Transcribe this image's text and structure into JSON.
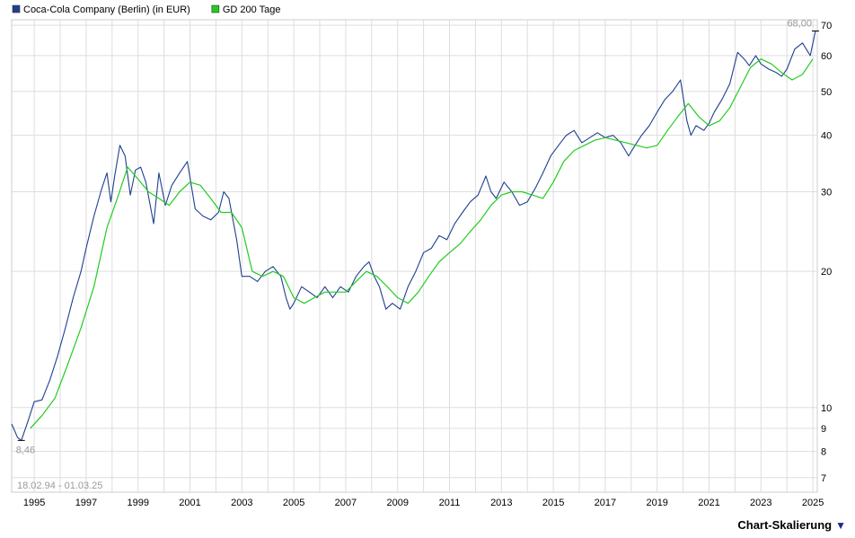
{
  "colors": {
    "price_line": "#1f3f8f",
    "ma_line": "#22cc22",
    "grid": "#dddddd",
    "frame": "#cccccc",
    "annotation": "#9a9a9a",
    "accent": "#1a2a8a"
  },
  "chart_data": {
    "type": "line",
    "y_scale": "log",
    "ylim": [
      6.5,
      72
    ],
    "xlim": [
      1994.13,
      2025.17
    ],
    "y_ticks": [
      7,
      8,
      9,
      10,
      20,
      30,
      40,
      50,
      60,
      70
    ],
    "y_tick_labels": [
      "7",
      "8",
      "9",
      "10",
      "20",
      "30",
      "40",
      "50",
      "60",
      "70"
    ],
    "x_ticks": [
      1995,
      1997,
      1999,
      2001,
      2003,
      2005,
      2007,
      2009,
      2011,
      2013,
      2015,
      2017,
      2019,
      2021,
      2023,
      2025
    ],
    "x_tick_labels": [
      "1995",
      "1997",
      "1999",
      "2001",
      "2003",
      "2005",
      "2007",
      "2009",
      "2011",
      "2013",
      "2015",
      "2017",
      "2019",
      "2021",
      "2023",
      "2025"
    ],
    "grid": true,
    "legend": "top-left",
    "series": [
      {
        "name": "Coca-Cola Company (Berlin) (in EUR)",
        "color": "#1f3f8f",
        "x": [
          1994.13,
          1994.35,
          1994.5,
          1994.75,
          1995.0,
          1995.3,
          1995.6,
          1995.9,
          1996.2,
          1996.5,
          1996.8,
          1997.0,
          1997.3,
          1997.6,
          1997.8,
          1997.95,
          1998.1,
          1998.3,
          1998.5,
          1998.7,
          1998.9,
          1999.1,
          1999.3,
          1999.6,
          1999.8,
          2000.05,
          2000.3,
          2000.6,
          2000.9,
          2001.2,
          2001.5,
          2001.8,
          2002.1,
          2002.3,
          2002.5,
          2002.8,
          2003.0,
          2003.3,
          2003.6,
          2003.9,
          2004.2,
          2004.5,
          2004.7,
          2004.85,
          2005.0,
          2005.3,
          2005.6,
          2005.9,
          2006.2,
          2006.5,
          2006.8,
          2007.1,
          2007.4,
          2007.7,
          2007.9,
          2008.1,
          2008.3,
          2008.55,
          2008.8,
          2009.1,
          2009.4,
          2009.7,
          2010.0,
          2010.3,
          2010.6,
          2010.9,
          2011.2,
          2011.5,
          2011.8,
          2012.1,
          2012.4,
          2012.6,
          2012.8,
          2013.1,
          2013.4,
          2013.7,
          2014.0,
          2014.3,
          2014.6,
          2014.9,
          2015.2,
          2015.5,
          2015.8,
          2016.1,
          2016.4,
          2016.7,
          2017.0,
          2017.3,
          2017.6,
          2017.9,
          2018.15,
          2018.4,
          2018.7,
          2019.0,
          2019.3,
          2019.6,
          2019.9,
          2020.15,
          2020.3,
          2020.5,
          2020.8,
          2021.0,
          2021.2,
          2021.5,
          2021.8,
          2022.1,
          2022.35,
          2022.55,
          2022.8,
          2023.0,
          2023.3,
          2023.6,
          2023.8,
          2024.0,
          2024.3,
          2024.6,
          2024.9,
          2025.1
        ],
        "values": [
          9.2,
          8.6,
          8.46,
          9.3,
          10.3,
          10.4,
          11.5,
          13.0,
          15.0,
          17.5,
          20.0,
          22.5,
          26.5,
          30.5,
          33.0,
          28.5,
          32.5,
          38.0,
          36.0,
          29.5,
          33.5,
          34.0,
          31.5,
          25.5,
          33.0,
          28.0,
          31.0,
          33.0,
          35.0,
          27.5,
          26.5,
          26.0,
          27.0,
          30.0,
          29.0,
          23.5,
          19.5,
          19.5,
          19.0,
          20.0,
          20.5,
          19.5,
          17.5,
          16.5,
          17.0,
          18.5,
          18.0,
          17.5,
          18.5,
          17.5,
          18.5,
          18.0,
          19.5,
          20.5,
          21.0,
          19.5,
          18.5,
          16.5,
          17.0,
          16.5,
          18.5,
          20.0,
          22.0,
          22.5,
          24.0,
          23.5,
          25.5,
          27.0,
          28.5,
          29.5,
          32.5,
          30.0,
          29.0,
          31.5,
          30.0,
          28.0,
          28.5,
          30.5,
          33.0,
          36.0,
          38.0,
          40.0,
          41.0,
          38.5,
          39.5,
          40.5,
          39.5,
          40.0,
          38.5,
          36.0,
          38.0,
          40.0,
          42.0,
          45.0,
          48.0,
          50.0,
          53.0,
          43.0,
          40.0,
          42.0,
          41.0,
          42.5,
          45.0,
          48.0,
          52.0,
          61.0,
          59.0,
          57.0,
          60.0,
          57.5,
          56.0,
          55.0,
          54.0,
          56.0,
          62.0,
          64.0,
          60.0,
          68.0
        ]
      },
      {
        "name": "GD 200 Tage",
        "color": "#22cc22",
        "x": [
          1994.85,
          1995.3,
          1995.8,
          1996.3,
          1996.8,
          1997.3,
          1997.8,
          1998.2,
          1998.6,
          1999.0,
          1999.4,
          1999.8,
          2000.2,
          2000.6,
          2001.0,
          2001.4,
          2001.8,
          2002.2,
          2002.6,
          2003.0,
          2003.4,
          2003.8,
          2004.2,
          2004.6,
          2005.0,
          2005.4,
          2005.8,
          2006.2,
          2006.6,
          2007.0,
          2007.4,
          2007.8,
          2008.2,
          2008.6,
          2009.0,
          2009.4,
          2009.8,
          2010.2,
          2010.6,
          2011.0,
          2011.4,
          2011.8,
          2012.2,
          2012.6,
          2013.0,
          2013.4,
          2013.8,
          2014.2,
          2014.6,
          2015.0,
          2015.4,
          2015.8,
          2016.2,
          2016.6,
          2017.0,
          2017.4,
          2017.8,
          2018.2,
          2018.6,
          2019.0,
          2019.4,
          2019.8,
          2020.2,
          2020.6,
          2021.0,
          2021.4,
          2021.8,
          2022.2,
          2022.6,
          2023.0,
          2023.4,
          2023.8,
          2024.2,
          2024.6,
          2025.0
        ],
        "values": [
          9.0,
          9.6,
          10.5,
          12.5,
          15.0,
          18.5,
          25.0,
          29.0,
          34.0,
          32.0,
          30.0,
          29.0,
          28.0,
          30.0,
          31.5,
          31.0,
          29.0,
          27.0,
          27.0,
          25.0,
          20.0,
          19.5,
          20.0,
          19.5,
          17.5,
          17.0,
          17.5,
          18.0,
          18.0,
          18.0,
          19.0,
          20.0,
          19.5,
          18.5,
          17.5,
          17.0,
          18.0,
          19.5,
          21.0,
          22.0,
          23.0,
          24.5,
          26.0,
          28.0,
          29.5,
          30.0,
          30.0,
          29.5,
          29.0,
          31.5,
          35.0,
          37.0,
          38.0,
          39.0,
          39.5,
          39.0,
          38.5,
          38.0,
          37.5,
          38.0,
          41.0,
          44.0,
          47.0,
          44.0,
          42.0,
          43.0,
          46.0,
          51.0,
          56.5,
          59.0,
          57.5,
          55.0,
          53.0,
          54.5,
          59.0
        ]
      }
    ],
    "annotations": {
      "max_label": "68,00",
      "min_label": "8,46",
      "range_label": "18.02.94 - 01.03.25"
    }
  },
  "footer": {
    "scale_button_label": "Chart-Skalierung",
    "scale_button_arrow": "▼"
  }
}
